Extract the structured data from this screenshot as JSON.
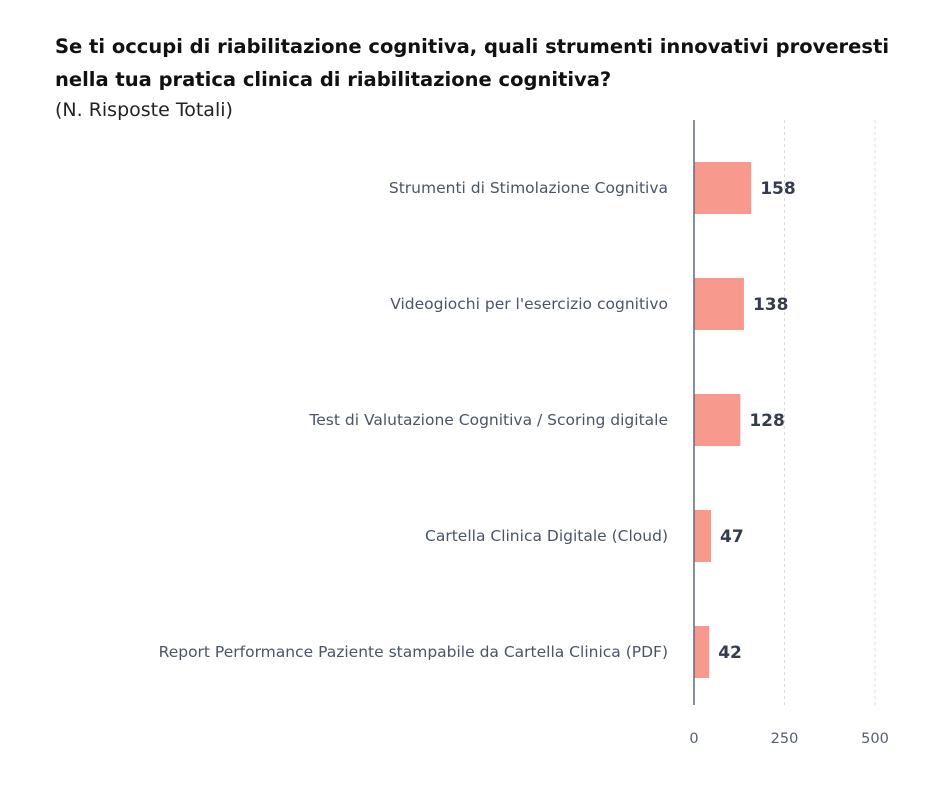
{
  "title": "Se ti occupi di riabilitazione cognitiva, quali strumenti innovativi proveresti nella tua pratica clinica di riabilitazione cognitiva?",
  "subtitle": "(N. Risposte Totali)",
  "chart_data": {
    "type": "bar",
    "orientation": "horizontal",
    "categories": [
      "Strumenti di Stimolazione Cognitiva",
      "Videogiochi per l'esercizio cognitivo",
      "Test di Valutazione Cognitiva / Scoring digitale",
      "Cartella Clinica Digitale (Cloud)",
      "Report Performance Paziente stampabile da Cartella Clinica (PDF)"
    ],
    "values": [
      158,
      138,
      128,
      47,
      42
    ],
    "xlim": [
      0,
      500
    ],
    "xticks": [
      0,
      250,
      500
    ],
    "grid": true,
    "bar_color": "#f7998c"
  }
}
